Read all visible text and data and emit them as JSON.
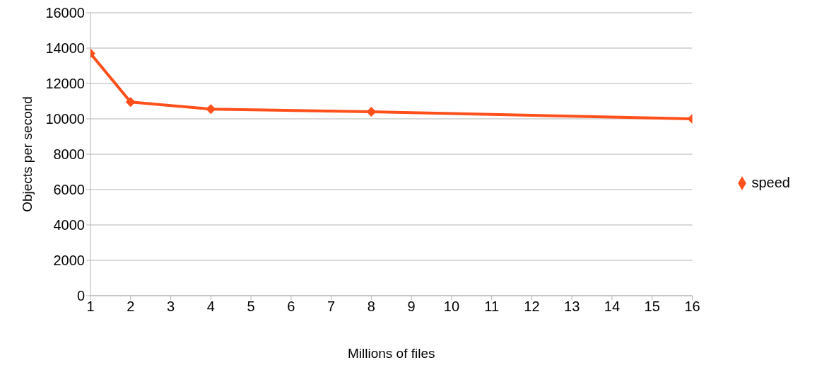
{
  "chart_data": {
    "type": "line",
    "xlabel": "Millions of files",
    "ylabel": "Objects per second",
    "x": [
      1,
      2,
      4,
      8,
      16
    ],
    "series": [
      {
        "name": "speed",
        "color": "#ff4f1a",
        "values": [
          13700,
          10950,
          10550,
          10400,
          10000
        ]
      }
    ],
    "xlim": [
      1,
      16
    ],
    "xticks": [
      1,
      2,
      3,
      4,
      5,
      6,
      7,
      8,
      9,
      10,
      11,
      12,
      13,
      14,
      15,
      16
    ],
    "ylim": [
      0,
      16000
    ],
    "yticks": [
      0,
      2000,
      4000,
      6000,
      8000,
      10000,
      12000,
      14000,
      16000
    ],
    "grid": "y",
    "legend": "right",
    "marker": "diamond",
    "line_style": "solid"
  }
}
